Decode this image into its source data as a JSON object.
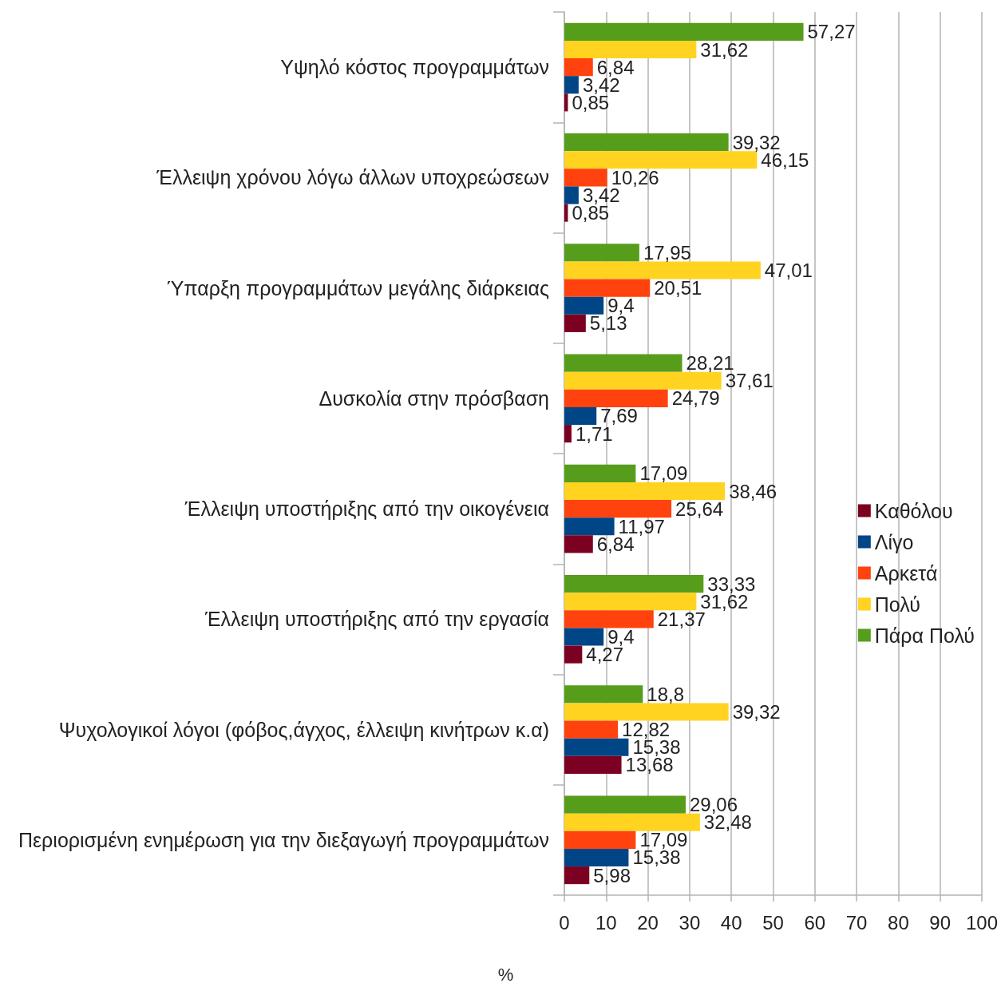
{
  "chart_data": {
    "type": "bar",
    "orientation": "horizontal",
    "xlabel": "%",
    "categories": [
      "Υψηλό κόστος προγραμμάτων",
      "Έλλειψη χρόνου λόγω άλλων υποχρεώσεων",
      "Ύπαρξη προγραμμάτων μεγάλης διάρκειας",
      "Δυσκολία στην πρόσβαση",
      "Έλλειψη υποστήριξης από την οικογένεια",
      "Έλλειψη υποστήριξης από την εργασία",
      "Ψυχολογικοί λόγοι (φόβος,άγχος, έλλειψη κινήτρων κ.α)",
      "Περιορισμένη ενημέρωση για την διεξαγωγή προγραμμάτων"
    ],
    "series": [
      {
        "name": "Καθόλου",
        "color": "#7b0021",
        "values": [
          0.85,
          0.85,
          5.13,
          1.71,
          6.84,
          4.27,
          13.68,
          5.98
        ],
        "value_labels": [
          "0,85",
          "0,85",
          "5,13",
          "1,71",
          "6,84",
          "4,27",
          "13,68",
          "5,98"
        ]
      },
      {
        "name": "Λίγο",
        "color": "#004586",
        "values": [
          3.42,
          3.42,
          9.4,
          7.69,
          11.97,
          9.4,
          15.38,
          15.38
        ],
        "value_labels": [
          "3,42",
          "3,42",
          "9,4",
          "7,69",
          "11,97",
          "9,4",
          "15,38",
          "15,38"
        ]
      },
      {
        "name": "Αρκετά",
        "color": "#ff420e",
        "values": [
          6.84,
          10.26,
          20.51,
          24.79,
          25.64,
          21.37,
          12.82,
          17.09
        ],
        "value_labels": [
          "6,84",
          "10,26",
          "20,51",
          "24,79",
          "25,64",
          "21,37",
          "12,82",
          "17,09"
        ]
      },
      {
        "name": "Πολύ",
        "color": "#ffd320",
        "values": [
          31.62,
          46.15,
          47.01,
          37.61,
          38.46,
          31.62,
          39.32,
          32.48
        ],
        "value_labels": [
          "31,62",
          "46,15",
          "47,01",
          "37,61",
          "38,46",
          "31,62",
          "39,32",
          "32,48"
        ]
      },
      {
        "name": "Πάρα Πολύ",
        "color": "#579d1c",
        "values": [
          57.27,
          39.32,
          17.95,
          28.21,
          17.09,
          33.33,
          18.8,
          29.06
        ],
        "value_labels": [
          "57,27",
          "39,32",
          "17,95",
          "28,21",
          "17,09",
          "33,33",
          "18,8",
          "29,06"
        ]
      }
    ],
    "xlim": [
      0,
      100
    ],
    "xticks": [
      0,
      10,
      20,
      30,
      40,
      50,
      60,
      70,
      80,
      90,
      100
    ],
    "grid": "x",
    "legend": "right"
  }
}
